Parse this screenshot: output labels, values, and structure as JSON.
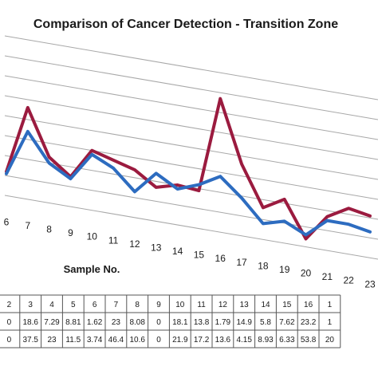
{
  "chart_data": {
    "type": "line",
    "title": "Comparison of Cancer Detection - Transition Zone",
    "xlabel": "Sample No.",
    "ylabel": "",
    "categories": [
      "6",
      "7",
      "8",
      "9",
      "10",
      "11",
      "12",
      "13",
      "14",
      "15",
      "16",
      "17",
      "18",
      "19",
      "20",
      "21",
      "22",
      "23"
    ],
    "series": [
      {
        "name": "",
        "color": "#9b1b3f",
        "values": [
          12,
          46,
          23,
          15,
          30,
          27,
          24,
          17,
          20,
          19,
          67,
          36,
          16,
          22,
          4,
          17,
          23,
          21
        ]
      },
      {
        "name": "",
        "color": "#2d6cc0",
        "values": [
          11,
          34,
          20,
          14,
          28,
          23,
          13,
          24,
          18,
          22,
          28,
          19,
          8,
          11,
          6,
          15,
          15,
          13
        ]
      }
    ],
    "ylim": [
      0,
      80
    ],
    "grid": true,
    "table": {
      "header": [
        "2",
        "3",
        "4",
        "5",
        "6",
        "7",
        "8",
        "9",
        "10",
        "11",
        "12",
        "13",
        "14",
        "15",
        "16",
        "1"
      ],
      "rows": [
        [
          "0",
          "18.6",
          "7.29",
          "8.81",
          "1.62",
          "23",
          "8.08",
          "0",
          "18.1",
          "13.8",
          "1.79",
          "14.9",
          "5.8",
          "7.62",
          "23.2",
          "1"
        ],
        [
          "0",
          "37.5",
          "23",
          "11.5",
          "3.74",
          "46.4",
          "10.6",
          "0",
          "21.9",
          "17.2",
          "13.6",
          "4.15",
          "8.93",
          "6.33",
          "53.8",
          "20"
        ]
      ]
    }
  }
}
